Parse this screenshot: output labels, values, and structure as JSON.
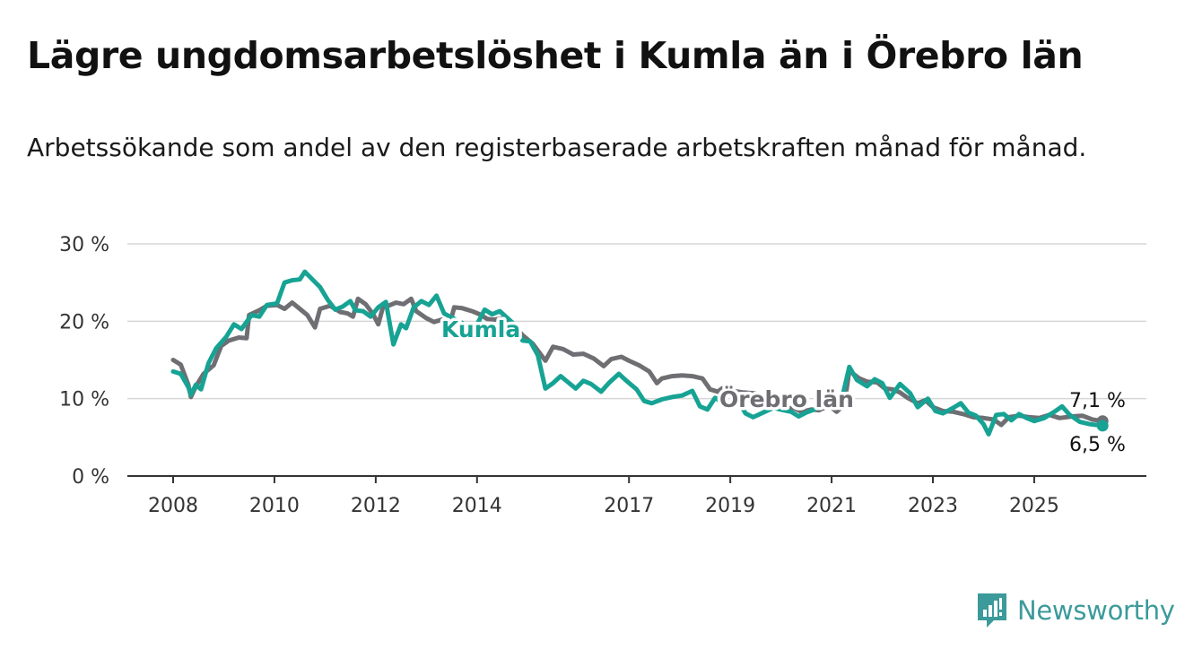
{
  "title": "Lägre ungdomsarbetslöshet i Kumla än i Örebro län",
  "subtitle": "Arbetssökande som andel av den registerbaserade arbetskraften månad för månad.",
  "brand": {
    "name": "Newsworthy",
    "icon": "newsworthy-logo-icon",
    "color": "#3c9a9b"
  },
  "colors": {
    "kumla": "#17a394",
    "orebro": "#6e6e73",
    "grid": "#d6d6d6",
    "axis": "#333333"
  },
  "chart_data": {
    "type": "line",
    "title": "Lägre ungdomsarbetslöshet i Kumla än i Örebro län",
    "subtitle": "Arbetssökande som andel av den registerbaserade arbetskraften månad för månad.",
    "xlabel": "",
    "ylabel": "",
    "ylim": [
      0,
      30
    ],
    "xlim": [
      2008.0,
      2026.4
    ],
    "y_ticks": [
      {
        "value": 0,
        "label": "0 %"
      },
      {
        "value": 10,
        "label": "10 %"
      },
      {
        "value": 20,
        "label": "20 %"
      },
      {
        "value": 30,
        "label": "30 %"
      }
    ],
    "x_ticks": [
      {
        "value": 2008,
        "label": "2008"
      },
      {
        "value": 2010,
        "label": "2010"
      },
      {
        "value": 2012,
        "label": "2012"
      },
      {
        "value": 2014,
        "label": "2014"
      },
      {
        "value": 2017,
        "label": "2017"
      },
      {
        "value": 2019,
        "label": "2019"
      },
      {
        "value": 2021,
        "label": "2021"
      },
      {
        "value": 2023,
        "label": "2023"
      },
      {
        "value": 2025,
        "label": "2025"
      }
    ],
    "grid": true,
    "legend": "inline labels",
    "series": [
      {
        "name": "Örebro län",
        "color": "#6e6e73",
        "end_label": "7,1 %",
        "points": [
          [
            2008.0,
            15.0
          ],
          [
            2008.15,
            14.4
          ],
          [
            2008.3,
            11.8
          ],
          [
            2008.35,
            10.2
          ],
          [
            2008.45,
            11.6
          ],
          [
            2008.6,
            13.2
          ],
          [
            2008.8,
            14.3
          ],
          [
            2008.95,
            16.8
          ],
          [
            2009.1,
            17.5
          ],
          [
            2009.3,
            17.9
          ],
          [
            2009.45,
            17.8
          ],
          [
            2009.5,
            20.8
          ],
          [
            2009.7,
            21.4
          ],
          [
            2009.85,
            22.0
          ],
          [
            2010.05,
            22.1
          ],
          [
            2010.2,
            21.6
          ],
          [
            2010.35,
            22.4
          ],
          [
            2010.5,
            21.6
          ],
          [
            2010.65,
            20.8
          ],
          [
            2010.8,
            19.2
          ],
          [
            2010.9,
            21.6
          ],
          [
            2011.1,
            22.0
          ],
          [
            2011.3,
            21.2
          ],
          [
            2011.45,
            21.0
          ],
          [
            2011.55,
            20.6
          ],
          [
            2011.65,
            22.9
          ],
          [
            2011.8,
            22.2
          ],
          [
            2011.95,
            20.9
          ],
          [
            2012.05,
            19.6
          ],
          [
            2012.15,
            22.0
          ],
          [
            2012.25,
            22.0
          ],
          [
            2012.4,
            22.4
          ],
          [
            2012.55,
            22.2
          ],
          [
            2012.7,
            22.9
          ],
          [
            2012.8,
            21.3
          ],
          [
            2013.0,
            20.4
          ],
          [
            2013.15,
            19.9
          ],
          [
            2013.3,
            20.2
          ],
          [
            2013.4,
            19.0
          ],
          [
            2013.5,
            20.6
          ],
          [
            2013.55,
            21.8
          ],
          [
            2013.7,
            21.7
          ],
          [
            2013.9,
            21.3
          ],
          [
            2014.05,
            20.9
          ],
          [
            2014.2,
            20.3
          ],
          [
            2014.35,
            20.2
          ],
          [
            2014.5,
            20.4
          ],
          [
            2014.65,
            19.9
          ],
          [
            2014.75,
            19.3
          ],
          [
            2014.9,
            18.2
          ],
          [
            2015.1,
            17.1
          ],
          [
            2015.35,
            14.9
          ],
          [
            2015.5,
            16.7
          ],
          [
            2015.7,
            16.4
          ],
          [
            2015.9,
            15.7
          ],
          [
            2016.1,
            15.8
          ],
          [
            2016.3,
            15.2
          ],
          [
            2016.5,
            14.2
          ],
          [
            2016.65,
            15.1
          ],
          [
            2016.85,
            15.4
          ],
          [
            2017.0,
            14.9
          ],
          [
            2017.2,
            14.3
          ],
          [
            2017.4,
            13.5
          ],
          [
            2017.55,
            12.0
          ],
          [
            2017.65,
            12.6
          ],
          [
            2017.85,
            12.9
          ],
          [
            2018.05,
            13.0
          ],
          [
            2018.25,
            12.9
          ],
          [
            2018.45,
            12.6
          ],
          [
            2018.6,
            11.2
          ],
          [
            2018.75,
            10.9
          ],
          [
            2018.9,
            11.6
          ],
          [
            2019.05,
            11.0
          ],
          [
            2019.25,
            10.8
          ],
          [
            2019.45,
            10.7
          ],
          [
            2019.6,
            10.5
          ],
          [
            2019.65,
            9.6
          ],
          [
            2019.85,
            9.0
          ],
          [
            2020.05,
            8.7
          ],
          [
            2020.25,
            8.8
          ],
          [
            2020.4,
            8.3
          ],
          [
            2020.6,
            8.6
          ],
          [
            2020.75,
            8.5
          ],
          [
            2020.95,
            9.1
          ],
          [
            2021.1,
            8.3
          ],
          [
            2021.25,
            9.2
          ],
          [
            2021.35,
            13.6
          ],
          [
            2021.55,
            12.6
          ],
          [
            2021.7,
            12.2
          ],
          [
            2021.9,
            12.1
          ],
          [
            2022.05,
            11.3
          ],
          [
            2022.2,
            11.2
          ],
          [
            2022.35,
            10.8
          ],
          [
            2022.5,
            10.1
          ],
          [
            2022.7,
            9.4
          ],
          [
            2022.85,
            9.8
          ],
          [
            2023.0,
            8.9
          ],
          [
            2023.2,
            8.4
          ],
          [
            2023.4,
            8.3
          ],
          [
            2023.6,
            8.0
          ],
          [
            2023.8,
            7.6
          ],
          [
            2024.0,
            7.5
          ],
          [
            2024.2,
            7.3
          ],
          [
            2024.35,
            6.6
          ],
          [
            2024.5,
            7.6
          ],
          [
            2024.7,
            7.8
          ],
          [
            2024.9,
            7.6
          ],
          [
            2025.1,
            7.5
          ],
          [
            2025.3,
            7.9
          ],
          [
            2025.5,
            7.5
          ],
          [
            2025.75,
            7.7
          ],
          [
            2025.95,
            7.8
          ],
          [
            2026.15,
            7.3
          ],
          [
            2026.35,
            7.1
          ]
        ]
      },
      {
        "name": "Kumla",
        "color": "#17a394",
        "end_label": "6,5 %",
        "points": [
          [
            2008.0,
            13.5
          ],
          [
            2008.15,
            13.2
          ],
          [
            2008.3,
            11.5
          ],
          [
            2008.35,
            10.5
          ],
          [
            2008.45,
            11.8
          ],
          [
            2008.55,
            11.2
          ],
          [
            2008.7,
            14.6
          ],
          [
            2008.85,
            16.5
          ],
          [
            2009.05,
            18.0
          ],
          [
            2009.2,
            19.6
          ],
          [
            2009.35,
            19.0
          ],
          [
            2009.55,
            20.8
          ],
          [
            2009.7,
            20.6
          ],
          [
            2009.85,
            22.1
          ],
          [
            2010.05,
            22.3
          ],
          [
            2010.2,
            25.0
          ],
          [
            2010.35,
            25.3
          ],
          [
            2010.5,
            25.4
          ],
          [
            2010.6,
            26.4
          ],
          [
            2010.75,
            25.4
          ],
          [
            2010.9,
            24.4
          ],
          [
            2011.05,
            22.8
          ],
          [
            2011.2,
            21.5
          ],
          [
            2011.35,
            21.9
          ],
          [
            2011.5,
            22.6
          ],
          [
            2011.6,
            21.4
          ],
          [
            2011.75,
            21.3
          ],
          [
            2011.9,
            20.6
          ],
          [
            2012.05,
            21.8
          ],
          [
            2012.2,
            22.5
          ],
          [
            2012.35,
            17.0
          ],
          [
            2012.5,
            19.6
          ],
          [
            2012.6,
            19.1
          ],
          [
            2012.75,
            21.8
          ],
          [
            2012.9,
            22.6
          ],
          [
            2013.05,
            22.1
          ],
          [
            2013.2,
            23.3
          ],
          [
            2013.35,
            21.0
          ],
          [
            2013.55,
            20.3
          ],
          [
            2013.7,
            19.8
          ],
          [
            2013.85,
            18.4
          ],
          [
            2014.0,
            19.6
          ],
          [
            2014.15,
            21.5
          ],
          [
            2014.3,
            20.9
          ],
          [
            2014.45,
            21.3
          ],
          [
            2014.6,
            20.4
          ],
          [
            2014.75,
            19.5
          ],
          [
            2014.9,
            17.5
          ],
          [
            2015.05,
            17.4
          ],
          [
            2015.2,
            15.6
          ],
          [
            2015.35,
            11.3
          ],
          [
            2015.5,
            12.0
          ],
          [
            2015.65,
            12.9
          ],
          [
            2015.8,
            12.1
          ],
          [
            2015.95,
            11.3
          ],
          [
            2016.1,
            12.3
          ],
          [
            2016.25,
            11.9
          ],
          [
            2016.45,
            10.9
          ],
          [
            2016.6,
            12.0
          ],
          [
            2016.8,
            13.2
          ],
          [
            2016.95,
            12.3
          ],
          [
            2017.15,
            11.2
          ],
          [
            2017.3,
            9.7
          ],
          [
            2017.45,
            9.4
          ],
          [
            2017.65,
            9.9
          ],
          [
            2017.85,
            10.2
          ],
          [
            2018.05,
            10.4
          ],
          [
            2018.25,
            11.0
          ],
          [
            2018.4,
            9.0
          ],
          [
            2018.55,
            8.6
          ],
          [
            2018.7,
            10.1
          ],
          [
            2018.85,
            9.5
          ],
          [
            2019.0,
            9.0
          ],
          [
            2019.15,
            9.8
          ],
          [
            2019.3,
            8.1
          ],
          [
            2019.45,
            7.6
          ],
          [
            2019.65,
            8.2
          ],
          [
            2019.85,
            8.8
          ],
          [
            2020.05,
            8.5
          ],
          [
            2020.2,
            8.3
          ],
          [
            2020.35,
            7.7
          ],
          [
            2020.5,
            8.2
          ],
          [
            2020.7,
            8.7
          ],
          [
            2020.9,
            9.3
          ],
          [
            2021.05,
            9.8
          ],
          [
            2021.2,
            9.9
          ],
          [
            2021.35,
            14.1
          ],
          [
            2021.5,
            12.4
          ],
          [
            2021.7,
            11.6
          ],
          [
            2021.85,
            12.5
          ],
          [
            2022.0,
            12.0
          ],
          [
            2022.15,
            10.1
          ],
          [
            2022.35,
            11.9
          ],
          [
            2022.55,
            10.7
          ],
          [
            2022.7,
            8.9
          ],
          [
            2022.9,
            10.0
          ],
          [
            2023.05,
            8.4
          ],
          [
            2023.2,
            8.1
          ],
          [
            2023.4,
            8.8
          ],
          [
            2023.55,
            9.4
          ],
          [
            2023.7,
            8.2
          ],
          [
            2023.85,
            7.8
          ],
          [
            2024.0,
            6.7
          ],
          [
            2024.1,
            5.4
          ],
          [
            2024.25,
            7.9
          ],
          [
            2024.4,
            8.0
          ],
          [
            2024.55,
            7.2
          ],
          [
            2024.7,
            8.0
          ],
          [
            2024.85,
            7.5
          ],
          [
            2025.0,
            7.1
          ],
          [
            2025.2,
            7.5
          ],
          [
            2025.4,
            8.3
          ],
          [
            2025.55,
            9.0
          ],
          [
            2025.7,
            7.9
          ],
          [
            2025.9,
            7.0
          ],
          [
            2026.1,
            6.7
          ],
          [
            2026.35,
            6.5
          ]
        ]
      }
    ]
  }
}
